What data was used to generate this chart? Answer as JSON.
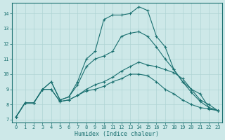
{
  "xlabel": "Humidex (Indice chaleur)",
  "bg_color": "#cde8e8",
  "grid_color": "#afd4d4",
  "line_color": "#1a7070",
  "xlim": [
    -0.5,
    23.5
  ],
  "ylim": [
    6.8,
    14.7
  ],
  "xticks": [
    0,
    1,
    2,
    3,
    4,
    5,
    6,
    7,
    8,
    9,
    10,
    11,
    12,
    13,
    14,
    15,
    16,
    17,
    18,
    19,
    20,
    21,
    22,
    23
  ],
  "yticks": [
    7,
    8,
    9,
    10,
    11,
    12,
    13,
    14
  ],
  "line1_x": [
    0,
    1,
    2,
    3,
    4,
    5,
    6,
    7,
    8,
    9,
    10,
    11,
    12,
    13,
    14,
    15,
    16,
    17,
    18,
    19,
    20,
    21,
    22,
    23
  ],
  "line1_y": [
    7.2,
    8.1,
    8.1,
    9.0,
    9.0,
    8.2,
    8.3,
    8.6,
    9.0,
    9.3,
    9.5,
    9.8,
    10.2,
    10.5,
    10.8,
    10.6,
    10.5,
    10.3,
    10.1,
    9.7,
    9.0,
    8.3,
    8.0,
    7.6
  ],
  "line2_x": [
    0,
    1,
    2,
    3,
    4,
    5,
    6,
    7,
    8,
    9,
    10,
    11,
    12,
    13,
    14,
    15,
    16,
    17,
    18,
    19,
    20,
    21,
    22,
    23
  ],
  "line2_y": [
    7.2,
    8.1,
    8.1,
    9.0,
    9.5,
    8.3,
    8.5,
    9.3,
    10.5,
    11.0,
    11.2,
    11.5,
    12.5,
    12.7,
    12.8,
    12.5,
    11.8,
    11.0,
    10.3,
    9.5,
    8.8,
    8.2,
    7.8,
    7.6
  ],
  "line3_x": [
    0,
    1,
    2,
    3,
    4,
    5,
    6,
    7,
    8,
    9,
    10,
    11,
    12,
    13,
    14,
    15,
    16,
    17,
    18,
    19,
    20,
    21,
    22,
    23
  ],
  "line3_y": [
    7.2,
    8.1,
    8.1,
    9.0,
    9.5,
    8.3,
    8.5,
    9.5,
    11.0,
    11.5,
    13.6,
    13.9,
    13.9,
    14.0,
    14.45,
    14.2,
    12.5,
    11.8,
    10.3,
    9.5,
    9.0,
    8.7,
    7.8,
    7.6
  ],
  "line4_x": [
    0,
    1,
    2,
    3,
    4,
    5,
    6,
    7,
    8,
    9,
    10,
    11,
    12,
    13,
    14,
    15,
    16,
    17,
    18,
    19,
    20,
    21,
    22,
    23
  ],
  "line4_y": [
    7.2,
    8.1,
    8.1,
    9.0,
    9.0,
    8.2,
    8.3,
    8.6,
    8.9,
    9.0,
    9.2,
    9.5,
    9.7,
    10.0,
    10.0,
    9.9,
    9.5,
    9.0,
    8.7,
    8.3,
    8.0,
    7.8,
    7.7,
    7.6
  ]
}
